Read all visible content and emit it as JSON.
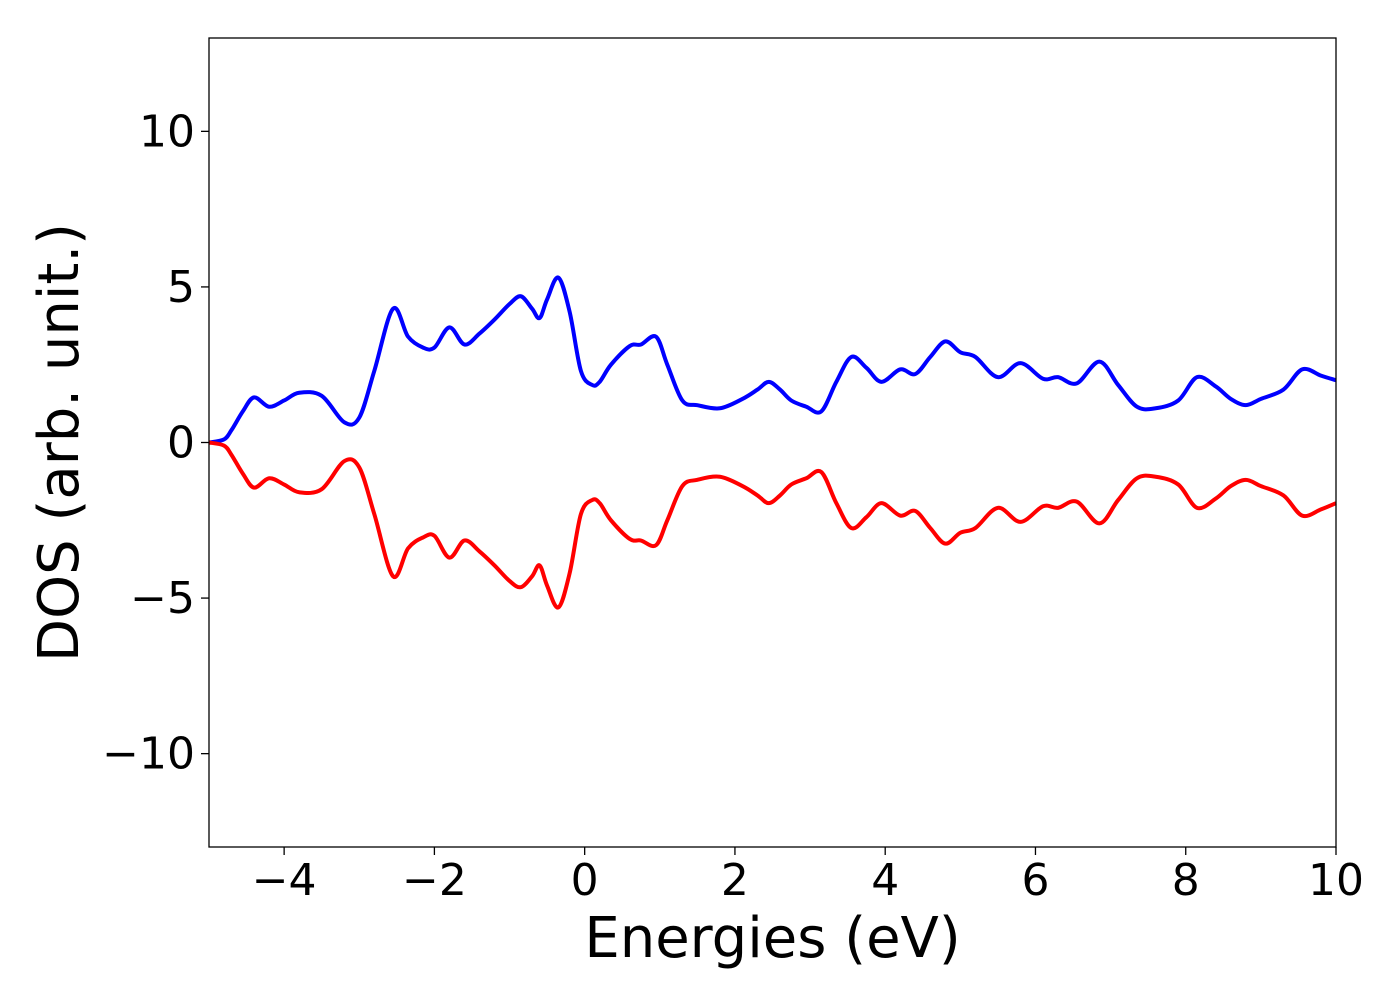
{
  "chart_data": {
    "type": "line",
    "title": "",
    "xlabel": "Energies (eV)",
    "ylabel": "DOS (arb. unit.)",
    "xlim": [
      -5,
      10
    ],
    "ylim": [
      -13,
      13
    ],
    "grid": false,
    "legend": "none",
    "x_ticks": [
      -4,
      -2,
      0,
      2,
      4,
      6,
      8,
      10
    ],
    "x_tick_labels": [
      "−4",
      "−2",
      "0",
      "2",
      "4",
      "6",
      "8",
      "10"
    ],
    "y_ticks": [
      10,
      5,
      0,
      -5,
      -10
    ],
    "y_tick_labels": [
      "10",
      "5",
      "0",
      "−5",
      "−10"
    ],
    "x": [
      -5.0,
      -4.8,
      -4.7,
      -4.55,
      -4.4,
      -4.2,
      -4.0,
      -3.8,
      -3.5,
      -3.2,
      -3.0,
      -2.8,
      -2.55,
      -2.35,
      -2.15,
      -2.0,
      -1.8,
      -1.6,
      -1.4,
      -1.2,
      -1.0,
      -0.85,
      -0.7,
      -0.6,
      -0.5,
      -0.35,
      -0.2,
      -0.05,
      0.1,
      0.2,
      0.35,
      0.6,
      0.75,
      0.95,
      1.1,
      1.3,
      1.5,
      1.8,
      2.1,
      2.3,
      2.45,
      2.6,
      2.75,
      2.95,
      3.15,
      3.35,
      3.55,
      3.75,
      3.95,
      4.2,
      4.4,
      4.6,
      4.8,
      5.0,
      5.2,
      5.5,
      5.8,
      6.1,
      6.3,
      6.55,
      6.85,
      7.1,
      7.35,
      7.6,
      7.9,
      8.15,
      8.4,
      8.6,
      8.8,
      9.0,
      9.3,
      9.55,
      9.8,
      10.0
    ],
    "series": [
      {
        "color": "#0000ff",
        "values": [
          0.0,
          0.1,
          0.4,
          1.0,
          1.45,
          1.15,
          1.35,
          1.6,
          1.5,
          0.65,
          0.8,
          2.3,
          4.3,
          3.4,
          3.05,
          3.05,
          3.7,
          3.15,
          3.5,
          3.95,
          4.45,
          4.7,
          4.3,
          4.0,
          4.6,
          5.3,
          4.2,
          2.3,
          1.85,
          1.95,
          2.5,
          3.1,
          3.15,
          3.4,
          2.5,
          1.35,
          1.2,
          1.1,
          1.4,
          1.7,
          1.95,
          1.7,
          1.35,
          1.15,
          1.0,
          1.95,
          2.75,
          2.4,
          1.95,
          2.35,
          2.2,
          2.75,
          3.25,
          2.9,
          2.75,
          2.1,
          2.55,
          2.05,
          2.1,
          1.9,
          2.6,
          1.85,
          1.15,
          1.1,
          1.35,
          2.1,
          1.8,
          1.4,
          1.2,
          1.4,
          1.7,
          2.35,
          2.15,
          2.0
        ]
      },
      {
        "color": "#ff0000",
        "values": [
          0.0,
          -0.1,
          -0.4,
          -1.0,
          -1.45,
          -1.15,
          -1.35,
          -1.6,
          -1.5,
          -0.6,
          -0.8,
          -2.3,
          -4.3,
          -3.4,
          -3.05,
          -3.0,
          -3.7,
          -3.15,
          -3.5,
          -3.95,
          -4.45,
          -4.65,
          -4.3,
          -3.95,
          -4.6,
          -5.3,
          -4.2,
          -2.3,
          -1.85,
          -1.95,
          -2.5,
          -3.1,
          -3.15,
          -3.3,
          -2.5,
          -1.4,
          -1.2,
          -1.1,
          -1.4,
          -1.7,
          -1.95,
          -1.7,
          -1.35,
          -1.15,
          -0.95,
          -1.95,
          -2.75,
          -2.4,
          -1.95,
          -2.35,
          -2.2,
          -2.75,
          -3.25,
          -2.9,
          -2.75,
          -2.1,
          -2.55,
          -2.05,
          -2.1,
          -1.9,
          -2.6,
          -1.85,
          -1.15,
          -1.1,
          -1.35,
          -2.1,
          -1.8,
          -1.4,
          -1.2,
          -1.4,
          -1.7,
          -2.35,
          -2.15,
          -1.95
        ]
      }
    ]
  }
}
